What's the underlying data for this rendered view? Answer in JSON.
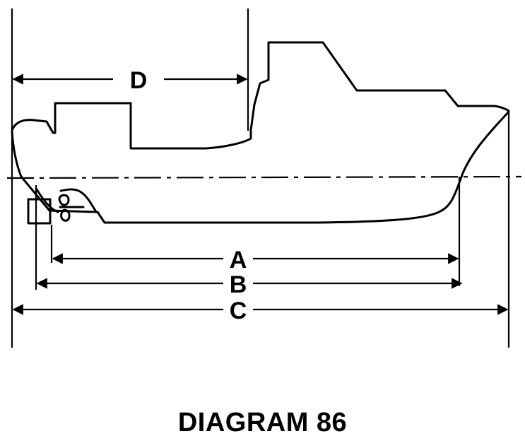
{
  "diagram": {
    "caption": "DIAGRAM 86",
    "dimensions": [
      {
        "id": "A",
        "label": "A"
      },
      {
        "id": "B",
        "label": "B"
      },
      {
        "id": "C",
        "label": "C"
      },
      {
        "id": "D",
        "label": "D"
      }
    ]
  }
}
